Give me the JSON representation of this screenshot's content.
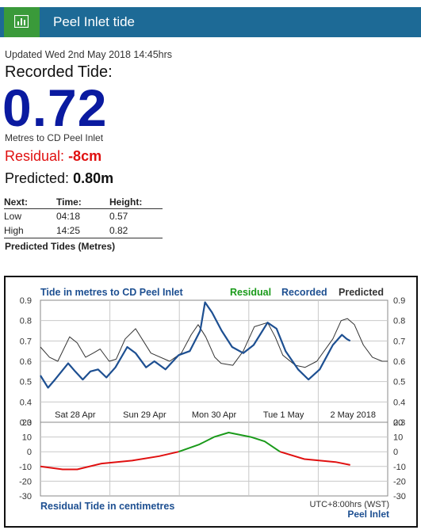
{
  "header": {
    "title": "Peel Inlet tide",
    "icon": "bar-chart-icon"
  },
  "updated": "Updated Wed 2nd May 2018 14:45hrs",
  "recorded": {
    "label": "Recorded Tide:",
    "value": "0.72",
    "units": "Metres to CD Peel Inlet"
  },
  "residual": {
    "label": "Residual:",
    "value": "-8cm"
  },
  "predicted": {
    "label": "Predicted:",
    "value": "0.80m"
  },
  "next_table": {
    "headers": [
      "Next:",
      "Time:",
      "Height:"
    ],
    "rows": [
      [
        "Low",
        "04:18",
        "0.57"
      ],
      [
        "High",
        "14:25",
        "0.82"
      ]
    ],
    "caption": "Predicted Tides (Metres)"
  },
  "colors": {
    "header_bg": "#1d6a96",
    "icon_bg": "#3a9a3a",
    "recorded": "#1d4f91",
    "predicted": "#333333",
    "residual_green": "#1a9a1a",
    "residual_red": "#e01010"
  },
  "chart_data": {
    "type": "line",
    "title": "Tide in metres to CD Peel Inlet",
    "legend": [
      "Residual",
      "Recorded",
      "Predicted"
    ],
    "x_labels": [
      "Sat 28 Apr",
      "Sun 29 Apr",
      "Mon 30 Apr",
      "Tue 1 May",
      "2 May 2018"
    ],
    "x_range_days": [
      0,
      5
    ],
    "ylim": [
      0.3,
      0.9
    ],
    "y_ticks": [
      "0.9",
      "0.8",
      "0.7",
      "0.6",
      "0.5",
      "0.4",
      "0.3"
    ],
    "series": [
      {
        "name": "Predicted",
        "x": [
          0,
          0.13,
          0.25,
          0.42,
          0.53,
          0.65,
          0.76,
          0.86,
          0.99,
          1.09,
          1.22,
          1.37,
          1.59,
          1.86,
          2.03,
          2.17,
          2.27,
          2.38,
          2.51,
          2.6,
          2.77,
          2.92,
          3.08,
          3.27,
          3.38,
          3.49,
          3.67,
          3.81,
          3.98,
          4.21,
          4.33,
          4.42,
          4.52,
          4.65,
          4.78,
          4.92,
          5.0
        ],
        "values": [
          0.67,
          0.62,
          0.6,
          0.72,
          0.69,
          0.62,
          0.64,
          0.66,
          0.6,
          0.61,
          0.71,
          0.76,
          0.64,
          0.6,
          0.64,
          0.73,
          0.78,
          0.72,
          0.62,
          0.59,
          0.58,
          0.65,
          0.77,
          0.79,
          0.72,
          0.63,
          0.58,
          0.57,
          0.6,
          0.71,
          0.8,
          0.81,
          0.78,
          0.68,
          0.62,
          0.6,
          0.6
        ]
      },
      {
        "name": "Recorded",
        "x": [
          0,
          0.11,
          0.21,
          0.4,
          0.5,
          0.61,
          0.72,
          0.83,
          0.95,
          1.08,
          1.25,
          1.37,
          1.52,
          1.64,
          1.8,
          1.99,
          2.15,
          2.3,
          2.37,
          2.47,
          2.61,
          2.76,
          2.92,
          3.07,
          3.27,
          3.4,
          3.53,
          3.71,
          3.86,
          4.02,
          4.21,
          4.34,
          4.41,
          4.46
        ],
        "values": [
          0.53,
          0.47,
          0.51,
          0.59,
          0.55,
          0.51,
          0.55,
          0.56,
          0.52,
          0.57,
          0.67,
          0.64,
          0.57,
          0.6,
          0.56,
          0.63,
          0.65,
          0.75,
          0.89,
          0.84,
          0.75,
          0.67,
          0.64,
          0.68,
          0.79,
          0.76,
          0.65,
          0.56,
          0.51,
          0.56,
          0.68,
          0.73,
          0.71,
          0.7
        ]
      }
    ],
    "residual_panel": {
      "title": "Residual Tide in centimetres",
      "ylim": [
        -30,
        20
      ],
      "y_ticks": [
        "20",
        "10",
        "0",
        "-10",
        "-20",
        "-30"
      ],
      "series": {
        "name": "Residual",
        "x": [
          0,
          0.32,
          0.53,
          0.88,
          1.32,
          1.71,
          1.99,
          2.29,
          2.5,
          2.71,
          3.03,
          3.23,
          3.45,
          3.8,
          4.25,
          4.46
        ],
        "values": [
          -10,
          -12,
          -12,
          -8,
          -6,
          -3,
          0,
          5,
          10,
          13,
          10,
          7,
          0,
          -5,
          -7,
          -9
        ],
        "green_from_x": 2.0,
        "green_to_x": 3.45
      }
    },
    "footnote": "UTC+8:00hrs (WST)",
    "station": "Peel Inlet"
  }
}
